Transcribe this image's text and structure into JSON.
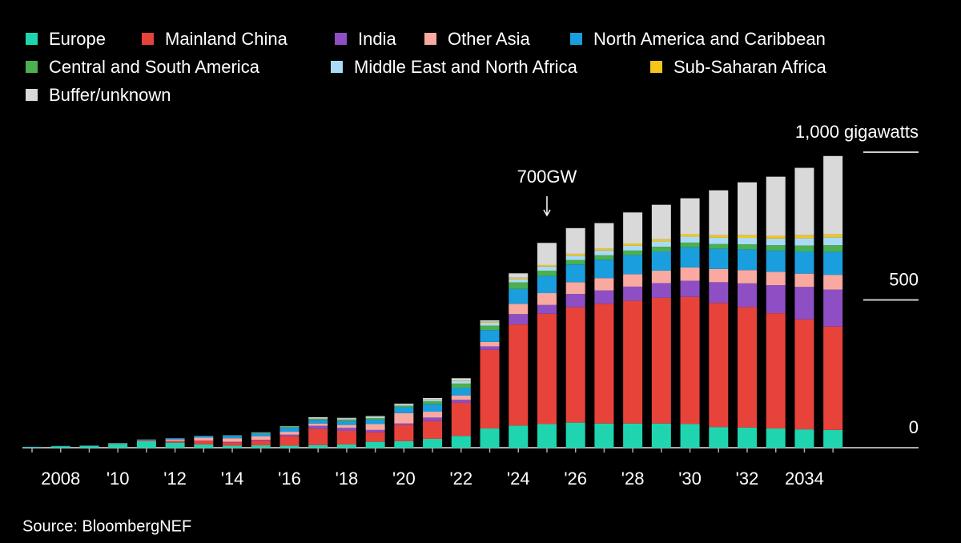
{
  "chart_data": {
    "type": "stacked-bar",
    "categories": [
      null,
      "2008",
      null,
      "'10",
      null,
      "'12",
      null,
      "'14",
      null,
      "'16",
      null,
      "'18",
      null,
      "'20",
      null,
      "'22",
      null,
      "'24",
      null,
      "'26",
      null,
      "'28",
      null,
      "'30",
      null,
      "'32",
      null,
      "2034",
      null
    ],
    "series": [
      {
        "name": "Europe",
        "color": "#1fd5b0",
        "values": [
          2,
          5,
          6,
          13,
          22,
          17,
          11,
          7,
          8,
          7,
          9,
          11,
          20,
          22,
          30,
          40,
          65,
          75,
          80,
          85,
          82,
          82,
          82,
          80,
          70,
          68,
          65,
          62,
          60
        ]
      },
      {
        "name": "Mainland China",
        "color": "#e8433a",
        "values": [
          0,
          0,
          0.5,
          1,
          3,
          5,
          12,
          11,
          16,
          32,
          55,
          46,
          32,
          55,
          60,
          112,
          266,
          342,
          373,
          390,
          405,
          415,
          425,
          430,
          420,
          408,
          390,
          372,
          350
        ]
      },
      {
        "name": "India",
        "color": "#8e4fc4",
        "values": [
          0,
          0,
          0,
          0,
          0,
          1,
          1,
          2,
          3,
          5,
          10,
          10,
          8,
          5,
          12,
          10,
          12,
          35,
          30,
          45,
          45,
          48,
          50,
          55,
          70,
          80,
          95,
          110,
          125
        ]
      },
      {
        "name": "Other Asia",
        "color": "#f9a9a0",
        "values": [
          0,
          0,
          0,
          1,
          1,
          5,
          10,
          12,
          12,
          10,
          8,
          10,
          20,
          35,
          20,
          15,
          15,
          35,
          40,
          40,
          42,
          42,
          42,
          45,
          45,
          45,
          45,
          45,
          50
        ]
      },
      {
        "name": "North America and Caribbean",
        "color": "#1a9ede",
        "values": [
          1,
          1,
          1,
          1,
          2,
          4,
          6,
          8,
          10,
          15,
          12,
          13,
          15,
          20,
          25,
          25,
          40,
          50,
          58,
          60,
          62,
          65,
          65,
          68,
          68,
          70,
          72,
          75,
          78
        ]
      },
      {
        "name": "Central and South America",
        "color": "#4caf50",
        "values": [
          0,
          0,
          0,
          0,
          0,
          0,
          0,
          1,
          1,
          2,
          3,
          4,
          5,
          5,
          10,
          15,
          15,
          22,
          18,
          15,
          15,
          15,
          16,
          16,
          16,
          17,
          18,
          20,
          22
        ]
      },
      {
        "name": "Middle East and North Africa",
        "color": "#a9dbf7",
        "values": [
          0,
          0,
          0,
          0,
          0,
          0,
          0,
          1,
          1,
          1,
          2,
          3,
          3,
          3,
          5,
          8,
          10,
          12,
          14,
          15,
          16,
          17,
          18,
          20,
          22,
          22,
          23,
          25,
          27
        ]
      },
      {
        "name": "Sub-Saharan Africa",
        "color": "#f5c518",
        "values": [
          0,
          0,
          0,
          0,
          0,
          0,
          0,
          0,
          1,
          1,
          1,
          1,
          1,
          1,
          1,
          2,
          3,
          4,
          5,
          6,
          6,
          7,
          7,
          8,
          8,
          9,
          9,
          10,
          10
        ]
      },
      {
        "name": "Buffer/unknown",
        "color": "#d9d9d9",
        "values": [
          0,
          0,
          0,
          0,
          0,
          0,
          0,
          0,
          0,
          0,
          3,
          3,
          3,
          3,
          5,
          8,
          5,
          15,
          75,
          87,
          87,
          105,
          117,
          122,
          152,
          179,
          200,
          228,
          265
        ]
      }
    ],
    "ylim": [
      0,
      1000
    ],
    "yticks": [
      0,
      500,
      {
        "value": 1000,
        "label": "1,000 gigawatts"
      }
    ],
    "annotation": "700GW",
    "source": "Source: BloombergNEF"
  }
}
